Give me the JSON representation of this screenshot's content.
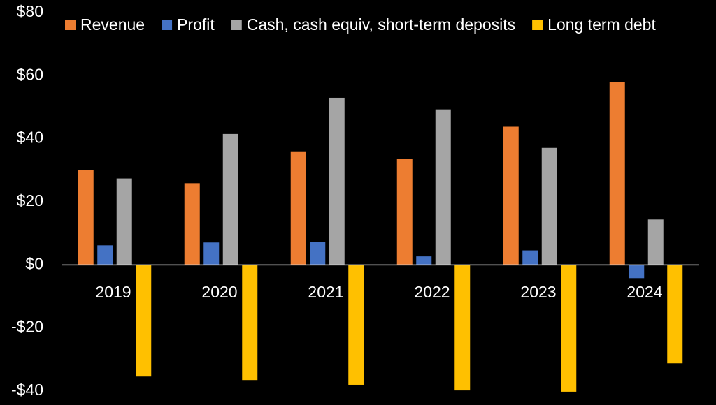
{
  "chart_data": {
    "type": "bar",
    "categories": [
      "2019",
      "2020",
      "2021",
      "2022",
      "2023",
      "2024"
    ],
    "series": [
      {
        "name": "Revenue",
        "color": "#ED7D31",
        "values": [
          30,
          25.9,
          36,
          33.6,
          43.8,
          57.9
        ]
      },
      {
        "name": "Profit",
        "color": "#4472C4",
        "values": [
          6.2,
          7.1,
          7.3,
          2.7,
          4.6,
          -4.2
        ]
      },
      {
        "name": "Cash, cash equiv, short-term deposits",
        "color": "#A5A5A5",
        "values": [
          27.4,
          41.5,
          53,
          49.3,
          37.1,
          14.4
        ]
      },
      {
        "name": "Long term debt",
        "color": "#FFC000",
        "values": [
          -35.4,
          -36.5,
          -38,
          -39.8,
          -40.2,
          -31.2
        ]
      }
    ],
    "ylim": [
      -40,
      80
    ],
    "yticks": [
      {
        "value": -40,
        "label": "-$40"
      },
      {
        "value": -20,
        "label": "-$20"
      },
      {
        "value": 0,
        "label": "$0"
      },
      {
        "value": 20,
        "label": "$20"
      },
      {
        "value": 40,
        "label": "$40"
      },
      {
        "value": 60,
        "label": "$60"
      },
      {
        "value": 80,
        "label": "$80"
      }
    ],
    "grid": false,
    "legend": "top"
  }
}
